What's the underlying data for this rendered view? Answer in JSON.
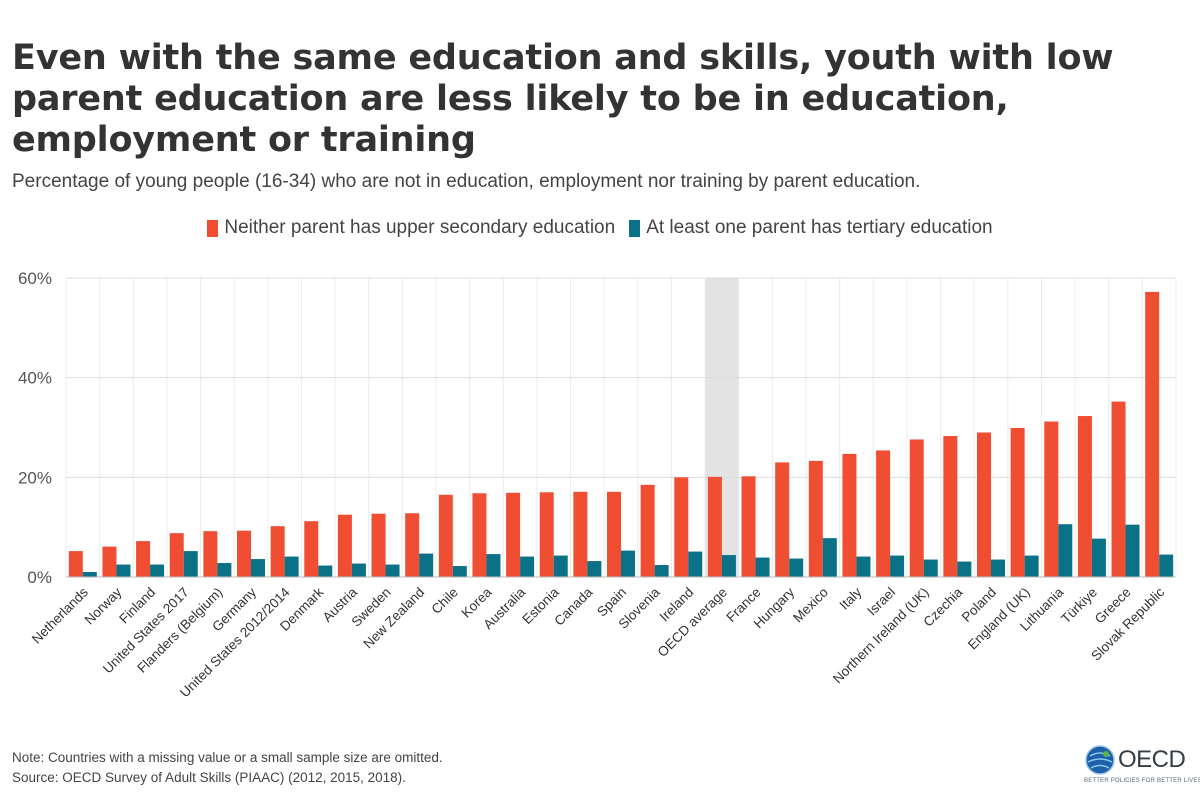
{
  "chart_data": {
    "type": "bar",
    "title": "Even with the same education and skills, youth with low parent education are less likely to be in education, employment or training",
    "subtitle": "Percentage of young people (16-34) who are not in education, employment nor training by parent education.",
    "ylim": [
      0,
      60
    ],
    "yticks": [
      "0%",
      "20%",
      "40%",
      "60%"
    ],
    "grid": true,
    "legend_position": "top-center",
    "highlight_category": "OECD average",
    "categories": [
      "Netherlands",
      "Norway",
      "Finland",
      "United States 2017",
      "Flanders (Belgium)",
      "Germany",
      "United States 2012/2014",
      "Denmark",
      "Austria",
      "Sweden",
      "New Zealand",
      "Chile",
      "Korea",
      "Australia",
      "Estonia",
      "Canada",
      "Spain",
      "Slovenia",
      "Ireland",
      "OECD average",
      "France",
      "Hungary",
      "Mexico",
      "Italy",
      "Israel",
      "Northern Ireland (UK)",
      "Czechia",
      "Poland",
      "England (UK)",
      "Lithuania",
      "Türkiye",
      "Greece",
      "Slovak Republic"
    ],
    "series": [
      {
        "name": "Neither parent has upper secondary education",
        "color": "#f04e33",
        "values": [
          5.2,
          6.1,
          7.2,
          8.8,
          9.2,
          9.3,
          10.2,
          11.2,
          12.5,
          12.7,
          12.8,
          16.5,
          16.8,
          16.9,
          17.0,
          17.1,
          17.1,
          18.5,
          20.0,
          20.1,
          20.2,
          23.0,
          23.3,
          24.7,
          25.4,
          27.6,
          28.3,
          29.0,
          29.9,
          31.2,
          32.3,
          35.2,
          57.2
        ]
      },
      {
        "name": "At least one parent has tertiary education",
        "color": "#0b7187",
        "values": [
          1.0,
          2.5,
          2.5,
          5.2,
          2.8,
          3.6,
          4.1,
          2.3,
          2.7,
          2.5,
          4.7,
          2.2,
          4.6,
          4.1,
          4.3,
          3.2,
          5.3,
          2.4,
          5.1,
          4.4,
          3.9,
          3.7,
          7.8,
          4.1,
          4.3,
          3.5,
          3.1,
          3.5,
          4.3,
          10.6,
          7.7,
          10.5,
          4.5
        ]
      }
    ]
  },
  "notes": {
    "note": "Note: Countries with a missing value or a small sample size are omitted.",
    "source": "Source: OECD Survey of Adult Skills (PIAAC) (2012, 2015, 2018)."
  },
  "logo": {
    "word": "OECD",
    "tagline": "BETTER POLICIES FOR BETTER LIVES"
  }
}
